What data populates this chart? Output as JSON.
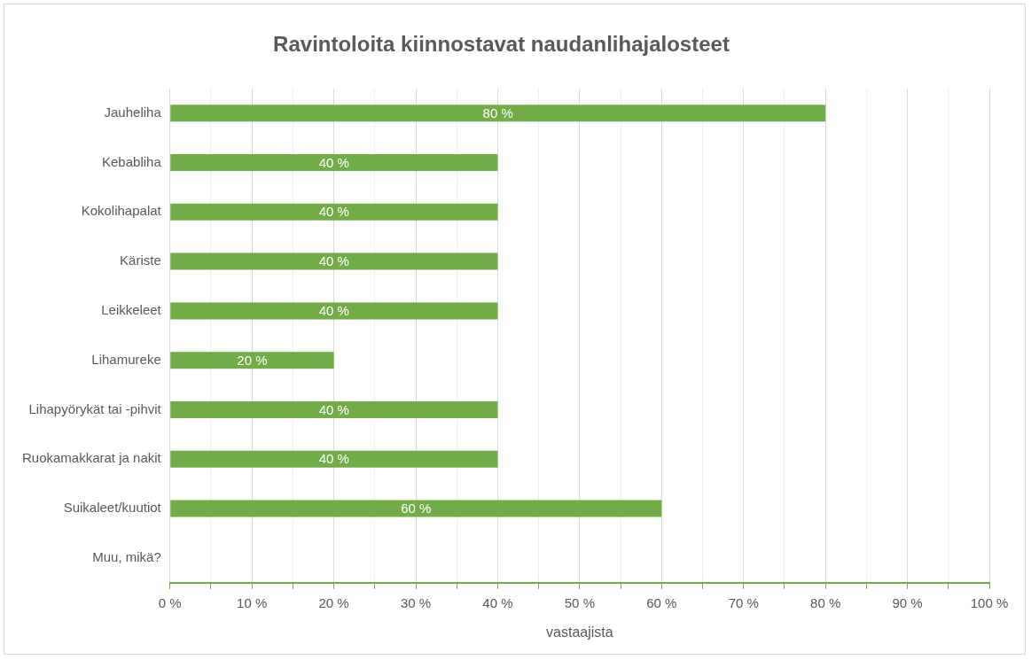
{
  "chart_data": {
    "type": "bar",
    "orientation": "horizontal",
    "title": "Ravintoloita kiinnostavat naudanlihajalosteet",
    "xlabel": "vastaajista",
    "categories": [
      "Jauheliha",
      "Kebabliha",
      "Kokolihapalat",
      "Käriste",
      "Leikkeleet",
      "Lihamureke",
      "Lihapyörykät tai -pihvit",
      "Ruokamakkarat ja nakit",
      "Suikaleet/kuutiot",
      "Muu, mikä?"
    ],
    "values": [
      80,
      40,
      40,
      40,
      40,
      20,
      40,
      40,
      60,
      0
    ],
    "value_labels": [
      "80 %",
      "40 %",
      "40 %",
      "40 %",
      "40 %",
      "20 %",
      "40 %",
      "40 %",
      "60 %",
      null
    ],
    "color": "#70ad47",
    "xlim": [
      0,
      100
    ],
    "xticks": [
      {
        "value": 0,
        "label": "0 %"
      },
      {
        "value": 5,
        "label": null
      },
      {
        "value": 10,
        "label": "10 %"
      },
      {
        "value": 15,
        "label": null
      },
      {
        "value": 20,
        "label": "20 %"
      },
      {
        "value": 25,
        "label": null
      },
      {
        "value": 30,
        "label": "30 %"
      },
      {
        "value": 35,
        "label": null
      },
      {
        "value": 40,
        "label": "40 %"
      },
      {
        "value": 45,
        "label": null
      },
      {
        "value": 50,
        "label": "50 %"
      },
      {
        "value": 55,
        "label": null
      },
      {
        "value": 60,
        "label": "60 %"
      },
      {
        "value": 65,
        "label": null
      },
      {
        "value": 70,
        "label": "70 %"
      },
      {
        "value": 75,
        "label": null
      },
      {
        "value": 80,
        "label": "80 %"
      },
      {
        "value": 85,
        "label": null
      },
      {
        "value": 90,
        "label": "90 %"
      },
      {
        "value": 95,
        "label": null
      },
      {
        "value": 100,
        "label": "100 %"
      }
    ],
    "grid": "x"
  }
}
